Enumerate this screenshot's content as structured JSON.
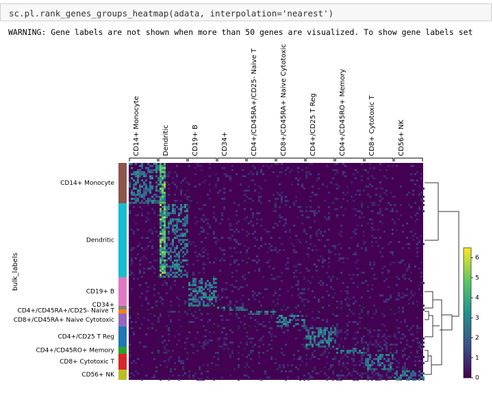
{
  "code": "sc.pl.rank_genes_groups_heatmap(adata, interpolation='nearest')",
  "warning": "WARNING: Gene labels are not shown when more than 50 genes are visualized. To show gene labels set",
  "heatmap": {
    "ylabel": "bulk_labels",
    "gene_groups": [
      "CD14+ Monocyte",
      "Dendritic",
      "CD19+ B",
      "CD34+",
      "CD4+/CD45RA+/CD25- Naive T",
      "CD8+/CD45RA+ Naive Cytotoxic",
      "CD4+/CD25 T Reg",
      "CD4+/CD45RO+ Memory",
      "CD8+ Cytotoxic T",
      "CD56+ NK"
    ],
    "cell_groups": [
      {
        "label": "CD14+ Monocyte",
        "color": "#8c564b"
      },
      {
        "label": "Dendritic",
        "color": "#17becf"
      },
      {
        "label": "CD19+ B",
        "color": "#e377c2"
      },
      {
        "label": "CD34+",
        "color": "#7f7f7f"
      },
      {
        "label": "CD4+/CD45RA+/CD25- Naive T",
        "color": "#ff7f0e"
      },
      {
        "label": "CD8+/CD45RA+ Naive Cytotoxic",
        "color": "#9467bd"
      },
      {
        "label": "CD4+/CD25 T Reg",
        "color": "#1f77b4"
      },
      {
        "label": "CD4+/CD45RO+ Memory",
        "color": "#2ca02c"
      },
      {
        "label": "CD8+ Cytotoxic T",
        "color": "#d62728"
      },
      {
        "label": "CD56+ NK",
        "color": "#bcbd22"
      }
    ],
    "colorbar": {
      "lim": [
        0,
        6.5
      ],
      "ticks": [
        0,
        1,
        2,
        3,
        4,
        5,
        6
      ]
    }
  }
}
